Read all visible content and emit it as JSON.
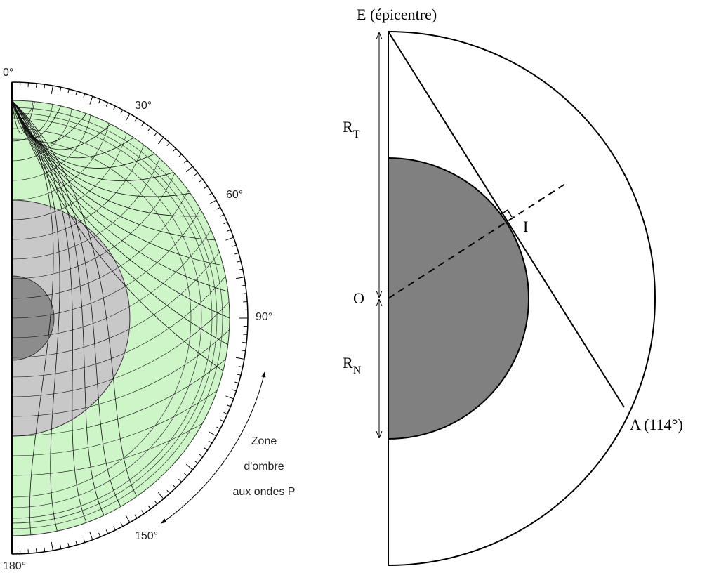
{
  "left": {
    "angle_labels": [
      "0°",
      "30°",
      "60°",
      "90°",
      "150°",
      "180°"
    ],
    "shadow_zone": [
      "Zone",
      "d'ombre",
      "aux ondes P"
    ]
  },
  "right": {
    "epicenter": "E (épicentre)",
    "radius_earth": {
      "main": "R",
      "sub": "T"
    },
    "center": "O",
    "radius_core": {
      "main": "R",
      "sub": "N"
    },
    "tangent_point": "I",
    "station": "A (114°)"
  }
}
